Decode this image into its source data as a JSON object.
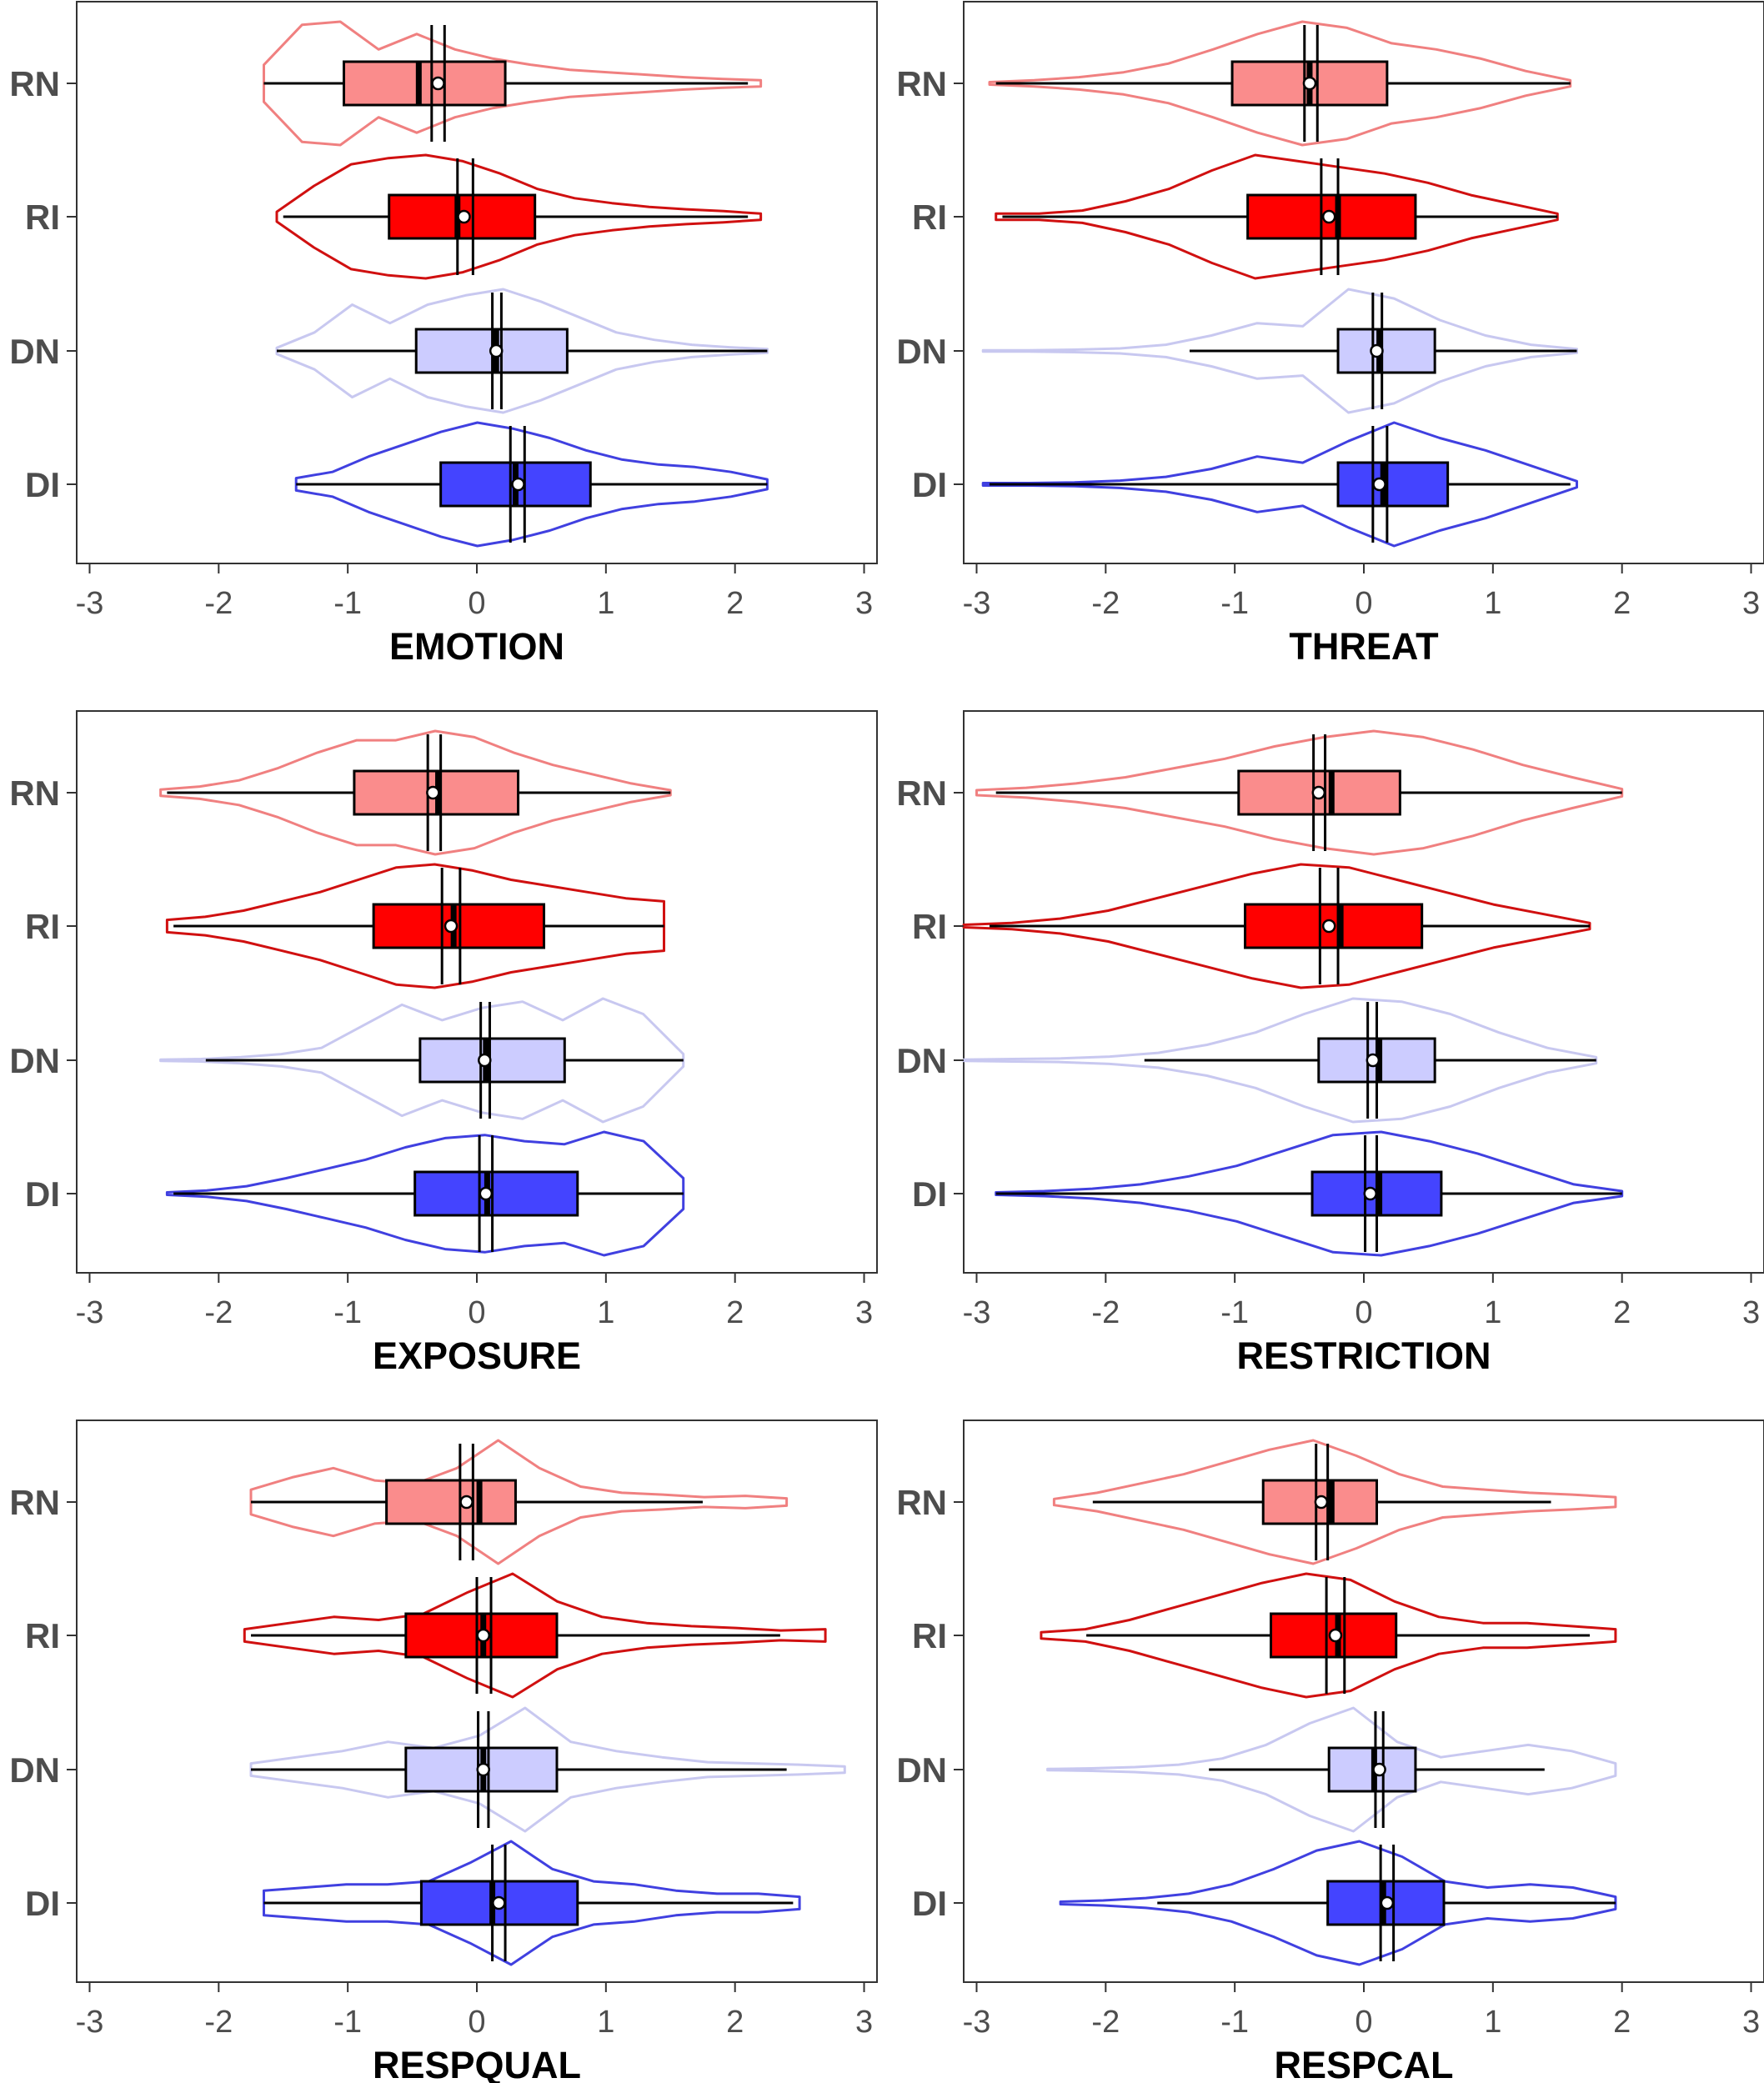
{
  "chart_data": [
    {
      "type": "violin-box",
      "title": "EMOTION",
      "categories": [
        "RN",
        "RI",
        "DN",
        "DI"
      ],
      "xlim": [
        -3.1,
        3.1
      ],
      "x_ticks": [
        "-3",
        "-2",
        "-1",
        "0",
        "1",
        "2",
        "3"
      ],
      "series": [
        {
          "name": "RN",
          "color": "#F08080",
          "fill": "#FA8C8C",
          "min": -1.65,
          "q1": -1.03,
          "median": -0.45,
          "q3": 0.22,
          "max": 2.1,
          "mean": -0.3,
          "ci": [
            -0.35,
            -0.25
          ],
          "violin_range": [
            -1.65,
            2.2
          ],
          "density": [
            0.3,
            0.95,
            1.0,
            0.55,
            0.8,
            0.55,
            0.4,
            0.3,
            0.22,
            0.18,
            0.14,
            0.1,
            0.07,
            0.05
          ]
        },
        {
          "name": "RI",
          "color": "#D01010",
          "fill": "#FF0000",
          "min": -1.5,
          "q1": -0.68,
          "median": -0.15,
          "q3": 0.45,
          "max": 2.1,
          "mean": -0.1,
          "ci": [
            -0.15,
            -0.03
          ],
          "violin_range": [
            -1.55,
            2.2
          ],
          "density": [
            0.08,
            0.5,
            0.85,
            0.95,
            1.0,
            0.9,
            0.7,
            0.45,
            0.3,
            0.22,
            0.16,
            0.12,
            0.09,
            0.05
          ]
        },
        {
          "name": "DN",
          "color": "#C8C8F0",
          "fill": "#CCCCFF",
          "min": -1.55,
          "q1": -0.47,
          "median": 0.15,
          "q3": 0.7,
          "max": 2.25,
          "mean": 0.15,
          "ci": [
            0.12,
            0.19
          ],
          "violin_range": [
            -1.55,
            2.25
          ],
          "density": [
            0.05,
            0.3,
            0.75,
            0.45,
            0.75,
            0.9,
            1.0,
            0.8,
            0.55,
            0.3,
            0.18,
            0.1,
            0.06,
            0.03
          ]
        },
        {
          "name": "DI",
          "color": "#4040E0",
          "fill": "#4444FF",
          "min": -1.4,
          "q1": -0.28,
          "median": 0.3,
          "q3": 0.88,
          "max": 2.25,
          "mean": 0.32,
          "ci": [
            0.26,
            0.37
          ],
          "violin_range": [
            -1.4,
            2.25
          ],
          "density": [
            0.1,
            0.2,
            0.45,
            0.65,
            0.85,
            1.0,
            0.9,
            0.75,
            0.55,
            0.4,
            0.32,
            0.28,
            0.2,
            0.08
          ]
        }
      ]
    },
    {
      "type": "violin-box",
      "title": "THREAT",
      "categories": [
        "RN",
        "RI",
        "DN",
        "DI"
      ],
      "xlim": [
        -3.1,
        3.1
      ],
      "x_ticks": [
        "-3",
        "-2",
        "-1",
        "0",
        "1",
        "2",
        "3"
      ],
      "series": [
        {
          "name": "RN",
          "color": "#F08080",
          "fill": "#FA8C8C",
          "min": -2.85,
          "q1": -1.02,
          "median": -0.42,
          "q3": 0.18,
          "max": 1.6,
          "mean": -0.42,
          "ci": [
            -0.46,
            -0.36
          ],
          "violin_range": [
            -2.9,
            1.6
          ],
          "density": [
            0.02,
            0.05,
            0.1,
            0.18,
            0.32,
            0.55,
            0.8,
            1.0,
            0.9,
            0.65,
            0.55,
            0.4,
            0.2,
            0.05
          ]
        },
        {
          "name": "RI",
          "color": "#D01010",
          "fill": "#FF0000",
          "min": -2.8,
          "q1": -0.9,
          "median": -0.2,
          "q3": 0.4,
          "max": 1.5,
          "mean": -0.27,
          "ci": [
            -0.33,
            -0.2
          ],
          "violin_range": [
            -2.85,
            1.5
          ],
          "density": [
            0.05,
            0.05,
            0.1,
            0.25,
            0.45,
            0.75,
            1.0,
            0.9,
            0.8,
            0.7,
            0.55,
            0.35,
            0.2,
            0.05
          ]
        },
        {
          "name": "DN",
          "color": "#C8C8F0",
          "fill": "#CCCCFF",
          "min": -1.35,
          "q1": -0.2,
          "median": 0.12,
          "q3": 0.55,
          "max": 1.65,
          "mean": 0.1,
          "ci": [
            0.07,
            0.14
          ],
          "violin_range": [
            -2.95,
            1.65
          ],
          "density": [
            0.01,
            0.01,
            0.02,
            0.04,
            0.1,
            0.25,
            0.45,
            0.4,
            1.0,
            0.85,
            0.5,
            0.25,
            0.1,
            0.03
          ]
        },
        {
          "name": "DI",
          "color": "#4040E0",
          "fill": "#4444FF",
          "min": -2.9,
          "q1": -0.2,
          "median": 0.15,
          "q3": 0.65,
          "max": 1.6,
          "mean": 0.12,
          "ci": [
            0.07,
            0.18
          ],
          "violin_range": [
            -2.95,
            1.65
          ],
          "density": [
            0.02,
            0.02,
            0.03,
            0.06,
            0.12,
            0.25,
            0.45,
            0.35,
            0.7,
            1.0,
            0.75,
            0.55,
            0.3,
            0.05
          ]
        }
      ]
    },
    {
      "type": "violin-box",
      "title": "EXPOSURE",
      "categories": [
        "RN",
        "RI",
        "DN",
        "DI"
      ],
      "xlim": [
        -3.1,
        3.1
      ],
      "x_ticks": [
        "-3",
        "-2",
        "-1",
        "0",
        "1",
        "2",
        "3"
      ],
      "series": [
        {
          "name": "RN",
          "color": "#F08080",
          "fill": "#FA8C8C",
          "min": -2.4,
          "q1": -0.95,
          "median": -0.3,
          "q3": 0.32,
          "max": 1.5,
          "mean": -0.34,
          "ci": [
            -0.38,
            -0.28
          ],
          "violin_range": [
            -2.45,
            1.5
          ],
          "density": [
            0.05,
            0.1,
            0.2,
            0.4,
            0.65,
            0.85,
            0.85,
            1.0,
            0.9,
            0.65,
            0.45,
            0.3,
            0.15,
            0.04
          ]
        },
        {
          "name": "RI",
          "color": "#D01010",
          "fill": "#FF0000",
          "min": -2.35,
          "q1": -0.8,
          "median": -0.18,
          "q3": 0.52,
          "max": 1.45,
          "mean": -0.2,
          "ci": [
            -0.27,
            -0.13
          ],
          "violin_range": [
            -2.4,
            1.45
          ],
          "density": [
            0.1,
            0.15,
            0.25,
            0.4,
            0.55,
            0.75,
            0.95,
            1.0,
            0.9,
            0.75,
            0.65,
            0.55,
            0.45,
            0.4
          ]
        },
        {
          "name": "DN",
          "color": "#C8C8F0",
          "fill": "#CCCCFF",
          "min": -2.1,
          "q1": -0.44,
          "median": 0.07,
          "q3": 0.68,
          "max": 1.6,
          "mean": 0.06,
          "ci": [
            0.03,
            0.1
          ],
          "violin_range": [
            -2.45,
            1.6
          ],
          "density": [
            0.01,
            0.02,
            0.05,
            0.1,
            0.2,
            0.55,
            0.9,
            0.65,
            0.85,
            0.95,
            0.65,
            1.0,
            0.75,
            0.1
          ]
        },
        {
          "name": "DI",
          "color": "#4040E0",
          "fill": "#4444FF",
          "min": -2.35,
          "q1": -0.48,
          "median": 0.08,
          "q3": 0.78,
          "max": 1.6,
          "mean": 0.07,
          "ci": [
            0.02,
            0.12
          ],
          "violin_range": [
            -2.4,
            1.6
          ],
          "density": [
            0.02,
            0.05,
            0.12,
            0.25,
            0.4,
            0.55,
            0.75,
            0.9,
            0.95,
            0.85,
            0.8,
            1.0,
            0.85,
            0.25
          ]
        }
      ]
    },
    {
      "type": "violin-box",
      "title": "RESTRICTION",
      "categories": [
        "RN",
        "RI",
        "DN",
        "DI"
      ],
      "xlim": [
        -3.1,
        3.1
      ],
      "x_ticks": [
        "-3",
        "-2",
        "-1",
        "0",
        "1",
        "2",
        "3"
      ],
      "series": [
        {
          "name": "RN",
          "color": "#F08080",
          "fill": "#FA8C8C",
          "min": -2.85,
          "q1": -0.97,
          "median": -0.25,
          "q3": 0.28,
          "max": 2.0,
          "mean": -0.35,
          "ci": [
            -0.39,
            -0.3
          ],
          "violin_range": [
            -3.0,
            2.0
          ],
          "density": [
            0.04,
            0.08,
            0.15,
            0.25,
            0.4,
            0.55,
            0.75,
            0.9,
            1.0,
            0.9,
            0.7,
            0.45,
            0.25,
            0.06
          ]
        },
        {
          "name": "RI",
          "color": "#D01010",
          "fill": "#FF0000",
          "min": -2.9,
          "q1": -0.92,
          "median": -0.18,
          "q3": 0.45,
          "max": 1.75,
          "mean": -0.27,
          "ci": [
            -0.34,
            -0.2
          ],
          "violin_range": [
            -3.1,
            1.75
          ],
          "density": [
            0.02,
            0.05,
            0.12,
            0.25,
            0.45,
            0.65,
            0.85,
            1.0,
            0.95,
            0.75,
            0.55,
            0.35,
            0.2,
            0.05
          ]
        },
        {
          "name": "DN",
          "color": "#C8C8F0",
          "fill": "#CCCCFF",
          "min": -1.7,
          "q1": -0.35,
          "median": 0.12,
          "q3": 0.55,
          "max": 1.8,
          "mean": 0.07,
          "ci": [
            0.03,
            0.1
          ],
          "violin_range": [
            -3.1,
            1.8
          ],
          "density": [
            0.01,
            0.02,
            0.03,
            0.06,
            0.12,
            0.25,
            0.45,
            0.75,
            1.0,
            0.95,
            0.75,
            0.45,
            0.2,
            0.05
          ]
        },
        {
          "name": "DI",
          "color": "#4040E0",
          "fill": "#4444FF",
          "min": -2.85,
          "q1": -0.4,
          "median": 0.12,
          "q3": 0.6,
          "max": 2.0,
          "mean": 0.05,
          "ci": [
            0.01,
            0.1
          ],
          "violin_range": [
            -2.85,
            2.0
          ],
          "density": [
            0.02,
            0.04,
            0.08,
            0.15,
            0.28,
            0.45,
            0.7,
            0.95,
            1.0,
            0.85,
            0.65,
            0.4,
            0.15,
            0.04
          ]
        }
      ]
    },
    {
      "type": "violin-box",
      "title": "RESPQUAL",
      "categories": [
        "RN",
        "RI",
        "DN",
        "DI"
      ],
      "xlim": [
        -3.1,
        3.1
      ],
      "x_ticks": [
        "-3",
        "-2",
        "-1",
        "0",
        "1",
        "2",
        "3"
      ],
      "series": [
        {
          "name": "RN",
          "color": "#F08080",
          "fill": "#FA8C8C",
          "min": -1.75,
          "q1": -0.7,
          "median": 0.02,
          "q3": 0.3,
          "max": 1.75,
          "mean": -0.08,
          "ci": [
            -0.13,
            -0.03
          ],
          "violin_range": [
            -1.75,
            2.4
          ],
          "density": [
            0.2,
            0.4,
            0.55,
            0.35,
            0.3,
            0.55,
            1.0,
            0.55,
            0.25,
            0.15,
            0.12,
            0.08,
            0.1,
            0.06
          ]
        },
        {
          "name": "RI",
          "color": "#D01010",
          "fill": "#FF0000",
          "min": -1.75,
          "q1": -0.55,
          "median": 0.05,
          "q3": 0.62,
          "max": 2.35,
          "mean": 0.05,
          "ci": [
            0.0,
            0.11
          ],
          "violin_range": [
            -1.8,
            2.7
          ],
          "density": [
            0.1,
            0.2,
            0.3,
            0.25,
            0.35,
            0.7,
            1.0,
            0.55,
            0.3,
            0.2,
            0.15,
            0.12,
            0.08,
            0.1
          ]
        },
        {
          "name": "DN",
          "color": "#C8C8F0",
          "fill": "#CCCCFF",
          "min": -1.75,
          "q1": -0.55,
          "median": 0.05,
          "q3": 0.62,
          "max": 2.4,
          "mean": 0.05,
          "ci": [
            0.01,
            0.09
          ],
          "violin_range": [
            -1.75,
            2.85
          ],
          "density": [
            0.1,
            0.2,
            0.3,
            0.45,
            0.35,
            0.55,
            1.0,
            0.45,
            0.3,
            0.2,
            0.12,
            0.1,
            0.08,
            0.05
          ]
        },
        {
          "name": "DI",
          "color": "#4040E0",
          "fill": "#4444FF",
          "min": -1.65,
          "q1": -0.43,
          "median": 0.12,
          "q3": 0.78,
          "max": 2.45,
          "mean": 0.17,
          "ci": [
            0.12,
            0.22
          ],
          "violin_range": [
            -1.65,
            2.5
          ],
          "density": [
            0.2,
            0.25,
            0.3,
            0.3,
            0.35,
            0.65,
            1.0,
            0.55,
            0.35,
            0.3,
            0.2,
            0.15,
            0.15,
            0.1
          ]
        }
      ]
    },
    {
      "type": "violin-box",
      "title": "RESPCAL",
      "categories": [
        "RN",
        "RI",
        "DN",
        "DI"
      ],
      "xlim": [
        -3.1,
        3.1
      ],
      "x_ticks": [
        "-3",
        "-2",
        "-1",
        "0",
        "1",
        "2",
        "3"
      ],
      "series": [
        {
          "name": "RN",
          "color": "#F08080",
          "fill": "#FA8C8C",
          "min": -2.1,
          "q1": -0.78,
          "median": -0.25,
          "q3": 0.1,
          "max": 1.45,
          "mean": -0.33,
          "ci": [
            -0.37,
            -0.28
          ],
          "violin_range": [
            -2.4,
            1.95
          ],
          "density": [
            0.05,
            0.15,
            0.3,
            0.45,
            0.65,
            0.85,
            1.0,
            0.75,
            0.45,
            0.25,
            0.2,
            0.15,
            0.12,
            0.08
          ]
        },
        {
          "name": "RI",
          "color": "#D01010",
          "fill": "#FF0000",
          "min": -2.15,
          "q1": -0.72,
          "median": -0.2,
          "q3": 0.25,
          "max": 1.75,
          "mean": -0.22,
          "ci": [
            -0.29,
            -0.15
          ],
          "violin_range": [
            -2.5,
            1.95
          ],
          "density": [
            0.05,
            0.1,
            0.25,
            0.45,
            0.65,
            0.85,
            1.0,
            0.9,
            0.55,
            0.3,
            0.2,
            0.2,
            0.15,
            0.1
          ]
        },
        {
          "name": "DN",
          "color": "#C8C8F0",
          "fill": "#CCCCFF",
          "min": -1.2,
          "q1": -0.27,
          "median": 0.08,
          "q3": 0.4,
          "max": 1.4,
          "mean": 0.12,
          "ci": [
            0.09,
            0.15
          ],
          "violin_range": [
            -2.45,
            1.95
          ],
          "density": [
            0.01,
            0.02,
            0.04,
            0.08,
            0.18,
            0.4,
            0.75,
            1.0,
            0.45,
            0.2,
            0.3,
            0.4,
            0.3,
            0.1
          ]
        },
        {
          "name": "DI",
          "color": "#4040E0",
          "fill": "#4444FF",
          "min": -1.6,
          "q1": -0.28,
          "median": 0.15,
          "q3": 0.62,
          "max": 1.95,
          "mean": 0.18,
          "ci": [
            0.13,
            0.23
          ],
          "violin_range": [
            -2.35,
            1.95
          ],
          "density": [
            0.02,
            0.04,
            0.08,
            0.15,
            0.3,
            0.55,
            0.85,
            1.0,
            0.75,
            0.35,
            0.25,
            0.3,
            0.25,
            0.1
          ]
        }
      ]
    }
  ]
}
